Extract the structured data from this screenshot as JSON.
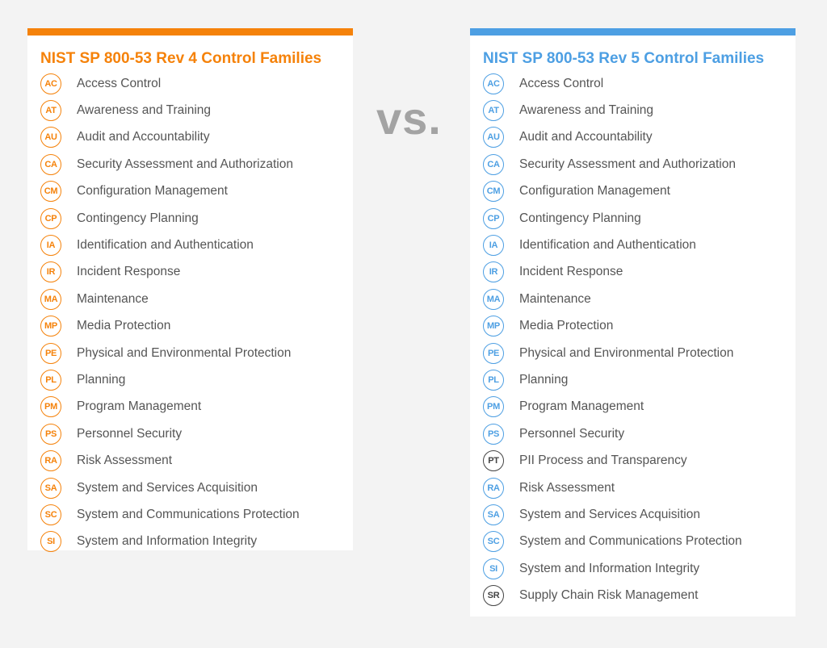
{
  "left_panel": {
    "title": "NIST SP 800-53 Rev 4 Control Families",
    "accent_color": "#f5820a",
    "families": [
      {
        "code": "AC",
        "name": "Access Control"
      },
      {
        "code": "AT",
        "name": "Awareness and Training"
      },
      {
        "code": "AU",
        "name": "Audit and Accountability"
      },
      {
        "code": "CA",
        "name": "Security Assessment and Authorization"
      },
      {
        "code": "CM",
        "name": "Configuration Management"
      },
      {
        "code": "CP",
        "name": "Contingency Planning"
      },
      {
        "code": "IA",
        "name": "Identification and Authentication"
      },
      {
        "code": "IR",
        "name": "Incident Response"
      },
      {
        "code": "MA",
        "name": "Maintenance"
      },
      {
        "code": "MP",
        "name": "Media Protection"
      },
      {
        "code": "PE",
        "name": "Physical and Environmental Protection"
      },
      {
        "code": "PL",
        "name": "Planning"
      },
      {
        "code": "PM",
        "name": "Program Management"
      },
      {
        "code": "PS",
        "name": "Personnel Security"
      },
      {
        "code": "RA",
        "name": "Risk Assessment"
      },
      {
        "code": "SA",
        "name": "System and Services Acquisition"
      },
      {
        "code": "SC",
        "name": "System and Communications Protection"
      },
      {
        "code": "SI",
        "name": "System and Information Integrity"
      }
    ]
  },
  "vs_text": "vs.",
  "right_panel": {
    "title": "NIST SP 800-53 Rev 5 Control Families",
    "accent_color": "#4d9fe3",
    "new_family_color": "#444444",
    "families": [
      {
        "code": "AC",
        "name": "Access Control",
        "new": false
      },
      {
        "code": "AT",
        "name": "Awareness and Training",
        "new": false
      },
      {
        "code": "AU",
        "name": "Audit and Accountability",
        "new": false
      },
      {
        "code": "CA",
        "name": "Security Assessment and Authorization",
        "new": false
      },
      {
        "code": "CM",
        "name": "Configuration Management",
        "new": false
      },
      {
        "code": "CP",
        "name": "Contingency Planning",
        "new": false
      },
      {
        "code": "IA",
        "name": "Identification and Authentication",
        "new": false
      },
      {
        "code": "IR",
        "name": "Incident Response",
        "new": false
      },
      {
        "code": "MA",
        "name": "Maintenance",
        "new": false
      },
      {
        "code": "MP",
        "name": "Media Protection",
        "new": false
      },
      {
        "code": "PE",
        "name": "Physical and Environmental Protection",
        "new": false
      },
      {
        "code": "PL",
        "name": "Planning",
        "new": false
      },
      {
        "code": "PM",
        "name": "Program Management",
        "new": false
      },
      {
        "code": "PS",
        "name": "Personnel Security",
        "new": false
      },
      {
        "code": "PT",
        "name": "PII Process and Transparency",
        "new": true
      },
      {
        "code": "RA",
        "name": "Risk Assessment",
        "new": false
      },
      {
        "code": "SA",
        "name": "System and Services Acquisition",
        "new": false
      },
      {
        "code": "SC",
        "name": "System and Communications Protection",
        "new": false
      },
      {
        "code": "SI",
        "name": "System and Information Integrity",
        "new": false
      },
      {
        "code": "SR",
        "name": "Supply Chain Risk Management",
        "new": true
      }
    ]
  }
}
